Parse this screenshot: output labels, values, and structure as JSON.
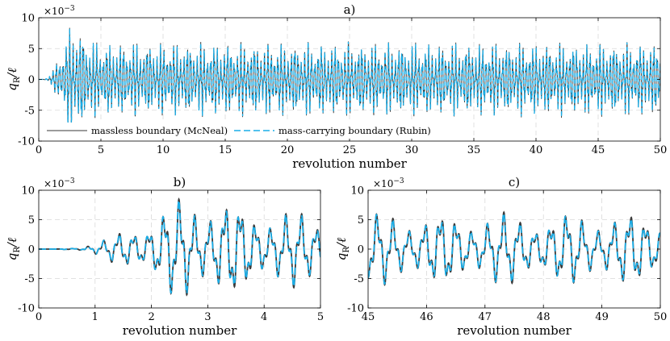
{
  "chart_data": [
    {
      "panel": "a)",
      "type": "line",
      "xlabel": "revolution number",
      "ylabel": "q_R / ℓ",
      "ylabel_main": "q",
      "ylabel_sub": "R",
      "ylabel_rest": "/ℓ",
      "y_exponent": "×10",
      "y_exponent_power": "−3",
      "xlim": [
        0,
        50
      ],
      "ylim": [
        -10,
        10
      ],
      "xticks": [
        0,
        5,
        10,
        15,
        20,
        25,
        30,
        35,
        40,
        45,
        50
      ],
      "yticks": [
        -10,
        -5,
        0,
        5,
        10
      ],
      "grid": true,
      "legend_position": "bottom-left",
      "series": [
        {
          "name": "massless boundary (McNeal)",
          "color": "#3a3a3a",
          "style": "solid"
        },
        {
          "name": "mass-carrying boundary (Rubin)",
          "color": "#1aaee8",
          "style": "dashed"
        }
      ],
      "signal": {
        "description_units": "x in revolutions, y in units of 1e-3",
        "onset_revolution": 0.2,
        "envelope_peak_revolution": 2.6,
        "steady_amplitude": 5.5,
        "peak_amplitude": 8.3,
        "dominant_period_rev": 0.27,
        "secondary_period_rev": 0.095
      }
    },
    {
      "panel": "b)",
      "type": "line",
      "xlabel": "revolution number",
      "ylabel_main": "q",
      "ylabel_sub": "R",
      "ylabel_rest": "/ℓ",
      "y_exponent": "×10",
      "y_exponent_power": "−3",
      "xlim": [
        0,
        5
      ],
      "ylim": [
        -10,
        10
      ],
      "xticks": [
        0,
        1,
        2,
        3,
        4,
        5
      ],
      "yticks": [
        -10,
        -5,
        0,
        5,
        10
      ],
      "grid": true
    },
    {
      "panel": "c)",
      "type": "line",
      "xlabel": "revolution number",
      "ylabel_main": "q",
      "ylabel_sub": "R",
      "ylabel_rest": "/ℓ",
      "y_exponent": "×10",
      "y_exponent_power": "−3",
      "xlim": [
        45,
        50
      ],
      "ylim": [
        -10,
        10
      ],
      "xticks": [
        45,
        46,
        47,
        48,
        49,
        50
      ],
      "yticks": [
        -10,
        -5,
        0,
        5,
        10
      ],
      "grid": true
    }
  ]
}
